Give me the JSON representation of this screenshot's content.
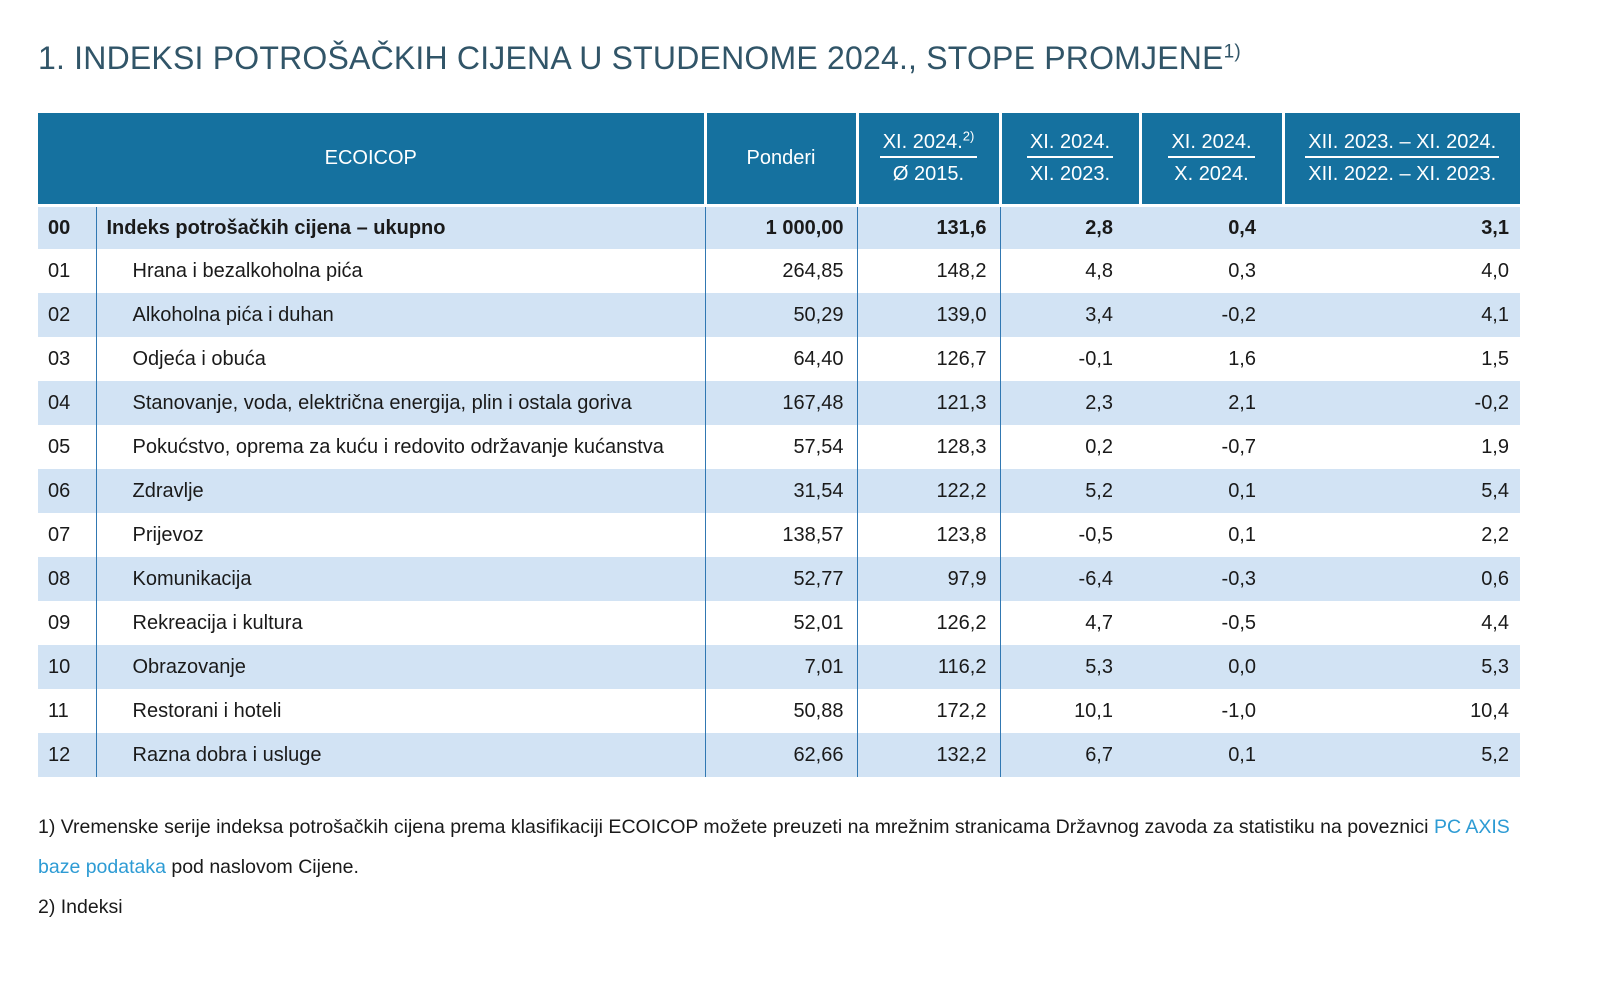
{
  "title": {
    "text": "1. INDEKSI POTROŠAČKIH CIJENA U STUDENOME 2024., STOPE PROMJENE",
    "superscript": "1)"
  },
  "colors": {
    "header_bg": "#15719f",
    "row_alt_bg": "#d2e3f4",
    "column_border": "#3178b2",
    "link_blue": "#2d9bd4",
    "title_color": "#315568"
  },
  "table": {
    "header": {
      "ecoicop": "ECOICOP",
      "ponderi": "Ponderi",
      "cols": [
        {
          "top": "XI. 2024.",
          "sup": "2)",
          "bottom": "Ø 2015."
        },
        {
          "top": "XI. 2024.",
          "sup": "",
          "bottom": "XI. 2023."
        },
        {
          "top": "XI. 2024.",
          "sup": "",
          "bottom": "X. 2024."
        },
        {
          "top": "XII. 2023. – XI. 2024.",
          "sup": "",
          "bottom": "XII. 2022. – XI. 2023."
        }
      ]
    },
    "rows": [
      {
        "code": "00",
        "name": "Indeks potrošačkih cijena – ukupno",
        "ponderi": "1 000,00",
        "idx": "131,6",
        "r1": "2,8",
        "r2": "0,4",
        "r3": "3,1"
      },
      {
        "code": "01",
        "name": "Hrana i bezalkoholna pića",
        "ponderi": "264,85",
        "idx": "148,2",
        "r1": "4,8",
        "r2": "0,3",
        "r3": "4,0"
      },
      {
        "code": "02",
        "name": "Alkoholna pića i duhan",
        "ponderi": "50,29",
        "idx": "139,0",
        "r1": "3,4",
        "r2": "-0,2",
        "r3": "4,1"
      },
      {
        "code": "03",
        "name": "Odjeća i obuća",
        "ponderi": "64,40",
        "idx": "126,7",
        "r1": "-0,1",
        "r2": "1,6",
        "r3": "1,5"
      },
      {
        "code": "04",
        "name": "Stanovanje, voda, električna energija, plin i ostala goriva",
        "ponderi": "167,48",
        "idx": "121,3",
        "r1": "2,3",
        "r2": "2,1",
        "r3": "-0,2"
      },
      {
        "code": "05",
        "name": "Pokućstvo, oprema za kuću i redovito održavanje kućanstva",
        "ponderi": "57,54",
        "idx": "128,3",
        "r1": "0,2",
        "r2": "-0,7",
        "r3": "1,9"
      },
      {
        "code": "06",
        "name": "Zdravlje",
        "ponderi": "31,54",
        "idx": "122,2",
        "r1": "5,2",
        "r2": "0,1",
        "r3": "5,4"
      },
      {
        "code": "07",
        "name": "Prijevoz",
        "ponderi": "138,57",
        "idx": "123,8",
        "r1": "-0,5",
        "r2": "0,1",
        "r3": "2,2"
      },
      {
        "code": "08",
        "name": "Komunikacija",
        "ponderi": "52,77",
        "idx": "97,9",
        "r1": "-6,4",
        "r2": "-0,3",
        "r3": "0,6"
      },
      {
        "code": "09",
        "name": "Rekreacija i kultura",
        "ponderi": "52,01",
        "idx": "126,2",
        "r1": "4,7",
        "r2": "-0,5",
        "r3": "4,4"
      },
      {
        "code": "10",
        "name": "Obrazovanje",
        "ponderi": "7,01",
        "idx": "116,2",
        "r1": "5,3",
        "r2": "0,0",
        "r3": "5,3"
      },
      {
        "code": "11",
        "name": "Restorani i hoteli",
        "ponderi": "50,88",
        "idx": "172,2",
        "r1": "10,1",
        "r2": "-1,0",
        "r3": "10,4"
      },
      {
        "code": "12",
        "name": "Razna dobra i usluge",
        "ponderi": "62,66",
        "idx": "132,2",
        "r1": "6,7",
        "r2": "0,1",
        "r3": "5,2"
      }
    ]
  },
  "footnotes": {
    "f1_before_link": "1) Vremenske serije indeksa potrošačkih cijena prema klasifikaciji ECOICOP možete preuzeti na mrežnim stranicama Državnog zavoda za statistiku na poveznici ",
    "f1_link": "PC AXIS baze podataka",
    "f1_after_link": " pod naslovom Cijene.",
    "f2": "2) Indeksi"
  }
}
